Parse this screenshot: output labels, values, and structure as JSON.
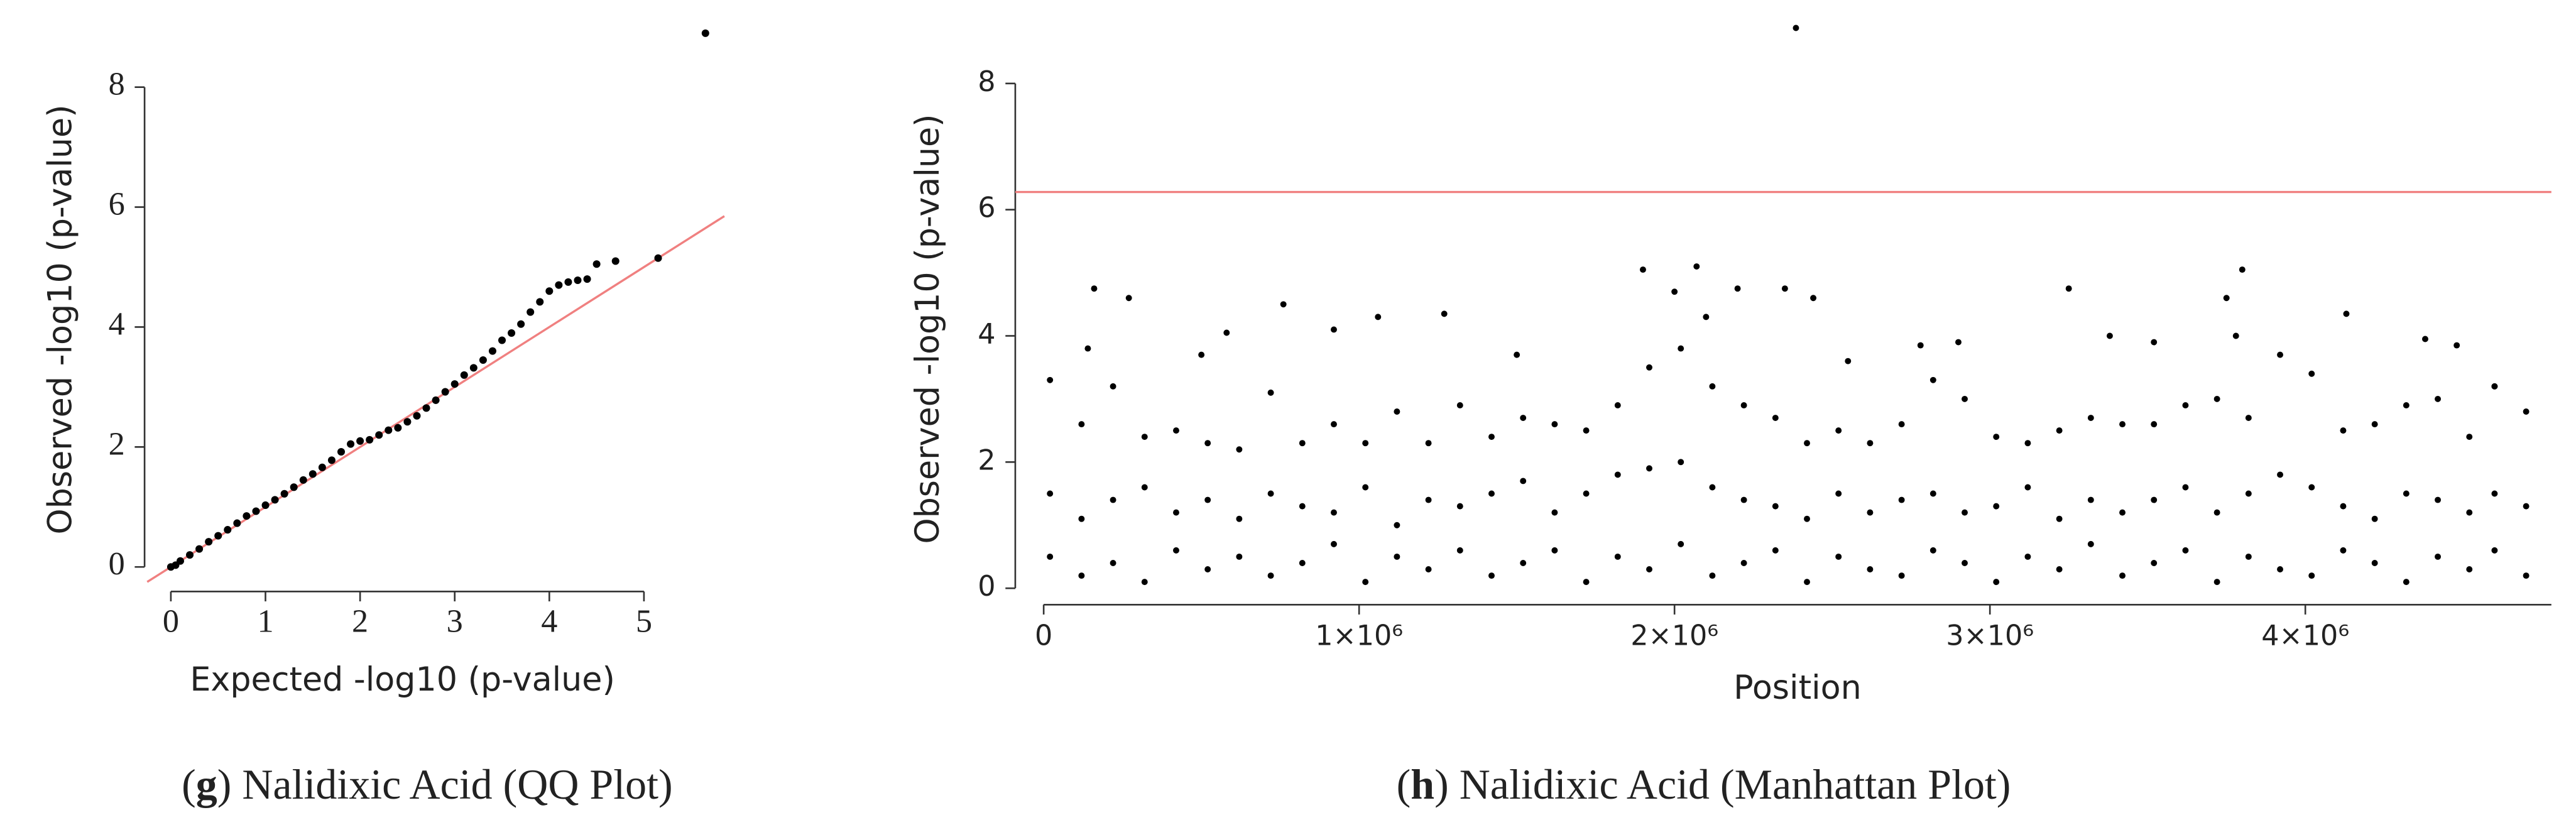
{
  "chart_data": [
    {
      "type": "scatter",
      "y_label": "Observed -log10 (p-value)",
      "x_label": "Expected -log10 (p-value)",
      "caption": [
        "(",
        "g",
        ") Nalidixic Acid (QQ Plot)"
      ],
      "xlim": [
        -0.25,
        5.9
      ],
      "ylim": [
        -0.3,
        9.1
      ],
      "xticks": [
        0,
        1,
        2,
        3,
        4,
        5
      ],
      "yticks": [
        0,
        2,
        4,
        6,
        8
      ],
      "reference_line": {
        "x": [
          -0.25,
          5.85
        ],
        "y": [
          -0.25,
          5.85
        ],
        "color": "#f08080"
      },
      "series": [
        {
          "color": "#000000",
          "x": [
            0,
            0.05,
            0.1,
            0.2,
            0.3,
            0.4,
            0.5,
            0.6,
            0.7,
            0.8,
            0.9,
            1.0,
            1.1,
            1.2,
            1.3,
            1.4,
            1.5,
            1.6,
            1.7,
            1.8,
            1.9,
            2.0,
            2.1,
            2.2,
            2.3,
            2.4,
            2.5,
            2.6,
            2.7,
            2.8,
            2.9,
            3.0,
            3.1,
            3.2,
            3.3,
            3.4,
            3.5,
            3.6,
            3.7,
            3.8,
            3.9,
            4.0,
            4.1,
            4.2,
            4.3,
            4.4,
            4.5,
            4.7,
            5.15,
            5.65
          ],
          "y": [
            0,
            0.03,
            0.1,
            0.2,
            0.3,
            0.42,
            0.52,
            0.62,
            0.73,
            0.85,
            0.93,
            1.03,
            1.12,
            1.22,
            1.33,
            1.45,
            1.55,
            1.66,
            1.78,
            1.92,
            2.05,
            2.1,
            2.12,
            2.2,
            2.28,
            2.32,
            2.42,
            2.52,
            2.65,
            2.78,
            2.92,
            3.05,
            3.2,
            3.32,
            3.45,
            3.6,
            3.78,
            3.9,
            4.05,
            4.25,
            4.42,
            4.6,
            4.7,
            4.75,
            4.78,
            4.8,
            5.05,
            5.1,
            5.15,
            8.9
          ]
        }
      ]
    },
    {
      "type": "scatter",
      "y_label": "Observed -log10 (p-value)",
      "x_label": "Position",
      "caption": [
        "(",
        "h",
        ") Nalidixic Acid (Manhattan Plot)"
      ],
      "xlim": [
        -90000,
        4780000
      ],
      "ylim": [
        -0.26,
        9.0
      ],
      "xticks": [
        0,
        {
          "value": 1000000,
          "label": "1×10⁶"
        },
        {
          "value": 2000000,
          "label": "2×10⁶"
        },
        {
          "value": 3000000,
          "label": "3×10⁶"
        },
        {
          "value": 4000000,
          "label": "4×10⁶"
        }
      ],
      "yticks": [
        0,
        2,
        4,
        6,
        8
      ],
      "threshold": {
        "value": 6.28,
        "color": "#f08080"
      },
      "series": [
        {
          "color": "#000000",
          "x": [
            20000,
            120000,
            220000,
            320000,
            420000,
            520000,
            620000,
            720000,
            820000,
            920000,
            1020000,
            1120000,
            1220000,
            1320000,
            1420000,
            1520000,
            1620000,
            1720000,
            1820000,
            1920000,
            2020000,
            2120000,
            2220000,
            2320000,
            2420000,
            2520000,
            2620000,
            2720000,
            2820000,
            2920000,
            3020000,
            3120000,
            3220000,
            3320000,
            3420000,
            3520000,
            3620000,
            3720000,
            3820000,
            3920000,
            4020000,
            4120000,
            4220000,
            4320000,
            4420000,
            4520000,
            4600000,
            4700000
          ],
          "y": [
            3.3,
            2.6,
            3.2,
            2.4,
            2.5,
            2.3,
            2.2,
            3.1,
            2.3,
            2.6,
            2.3,
            2.8,
            2.3,
            2.9,
            2.4,
            2.7,
            2.6,
            2.5,
            2.9,
            3.5,
            3.8,
            3.2,
            2.9,
            2.7,
            2.3,
            2.5,
            2.3,
            2.6,
            3.3,
            3.0,
            2.4,
            2.3,
            2.5,
            2.7,
            2.6,
            2.6,
            2.9,
            3.0,
            2.7,
            3.7,
            3.4,
            2.5,
            2.6,
            2.9,
            3.0,
            2.4,
            3.2,
            2.8
          ]
        },
        {
          "color": "#000000",
          "x": [
            20000,
            120000,
            220000,
            320000,
            420000,
            520000,
            620000,
            720000,
            820000,
            920000,
            1020000,
            1120000,
            1220000,
            1320000,
            1420000,
            1520000,
            1620000,
            1720000,
            1820000,
            1920000,
            2020000,
            2120000,
            2220000,
            2320000,
            2420000,
            2520000,
            2620000,
            2720000,
            2820000,
            2920000,
            3020000,
            3120000,
            3220000,
            3320000,
            3420000,
            3520000,
            3620000,
            3720000,
            3820000,
            3920000,
            4020000,
            4120000,
            4220000,
            4320000,
            4420000,
            4520000,
            4600000,
            4700000
          ],
          "y": [
            1.5,
            1.1,
            1.4,
            1.6,
            1.2,
            1.4,
            1.1,
            1.5,
            1.3,
            1.2,
            1.6,
            1.0,
            1.4,
            1.3,
            1.5,
            1.7,
            1.2,
            1.5,
            1.8,
            1.9,
            2.0,
            1.6,
            1.4,
            1.3,
            1.1,
            1.5,
            1.2,
            1.4,
            1.5,
            1.2,
            1.3,
            1.6,
            1.1,
            1.4,
            1.2,
            1.4,
            1.6,
            1.2,
            1.5,
            1.8,
            1.6,
            1.3,
            1.1,
            1.5,
            1.4,
            1.2,
            1.5,
            1.3
          ]
        },
        {
          "color": "#000000",
          "x": [
            20000,
            120000,
            220000,
            320000,
            420000,
            520000,
            620000,
            720000,
            820000,
            920000,
            1020000,
            1120000,
            1220000,
            1320000,
            1420000,
            1520000,
            1620000,
            1720000,
            1820000,
            1920000,
            2020000,
            2120000,
            2220000,
            2320000,
            2420000,
            2520000,
            2620000,
            2720000,
            2820000,
            2920000,
            3020000,
            3120000,
            3220000,
            3320000,
            3420000,
            3520000,
            3620000,
            3720000,
            3820000,
            3920000,
            4020000,
            4120000,
            4220000,
            4320000,
            4420000,
            4520000,
            4600000,
            4700000
          ],
          "y": [
            0.5,
            0.2,
            0.4,
            0.1,
            0.6,
            0.3,
            0.5,
            0.2,
            0.4,
            0.7,
            0.1,
            0.5,
            0.3,
            0.6,
            0.2,
            0.4,
            0.6,
            0.1,
            0.5,
            0.3,
            0.7,
            0.2,
            0.4,
            0.6,
            0.1,
            0.5,
            0.3,
            0.2,
            0.6,
            0.4,
            0.1,
            0.5,
            0.3,
            0.7,
            0.2,
            0.4,
            0.6,
            0.1,
            0.5,
            0.3,
            0.2,
            0.6,
            0.4,
            0.1,
            0.5,
            0.3,
            0.6,
            0.2
          ]
        },
        {
          "color": "#000000",
          "x": [
            160000,
            270000,
            140000,
            500000,
            580000,
            760000,
            920000,
            1060000,
            1270000,
            1500000,
            1900000,
            2070000,
            2000000,
            2100000,
            2200000,
            2385000,
            2350000,
            2440000,
            2550000,
            2780000,
            2900000,
            3250000,
            3380000,
            3520000,
            3800000,
            3750000,
            3780000,
            4130000,
            4380000,
            4480000,
            4600000
          ],
          "y": [
            4.75,
            4.6,
            3.8,
            3.7,
            4.05,
            4.5,
            4.1,
            4.3,
            4.35,
            3.7,
            5.05,
            5.1,
            4.7,
            4.3,
            4.75,
            8.88,
            4.75,
            4.6,
            3.6,
            3.85,
            3.9,
            4.75,
            4.0,
            3.9,
            5.05,
            4.6,
            4.0,
            4.35,
            3.95,
            3.85,
            3.2
          ]
        }
      ]
    }
  ]
}
